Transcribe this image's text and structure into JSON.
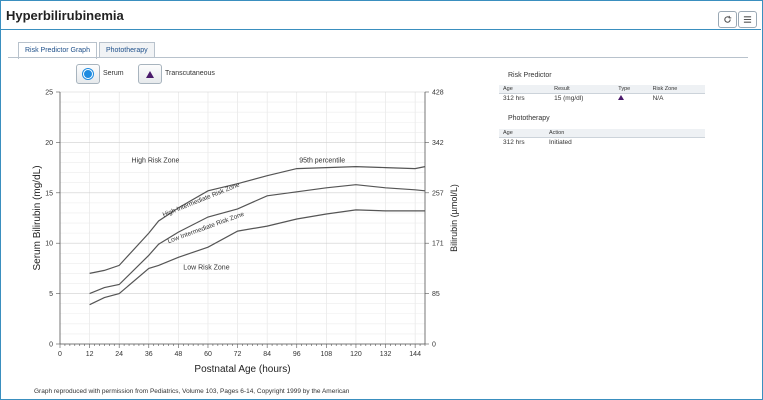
{
  "window": {
    "title": "Hyperbilirubinemia",
    "refresh_icon": "refresh-icon",
    "menu_icon": "menu-icon"
  },
  "tabs": [
    {
      "label": "Risk Predictor Graph",
      "active": true
    },
    {
      "label": "Phototherapy",
      "active": false
    }
  ],
  "legend": {
    "serum_label": "Serum",
    "transcutaneous_label": "Transcutaneous"
  },
  "chart_data": {
    "type": "line",
    "xlabel": "Postnatal Age (hours)",
    "ylabel": "Serum Bilirubin (mg/dL)",
    "y2label": "Bilirubin (µmol/L)",
    "xlim": [
      0,
      148
    ],
    "ylim": [
      0,
      25
    ],
    "x_ticks": [
      "0",
      "12",
      "24",
      "36",
      "48",
      "60",
      "72",
      "84",
      "96",
      "108",
      "120",
      "132",
      "144"
    ],
    "y_ticks": [
      "0",
      "5",
      "10",
      "15",
      "20",
      "25"
    ],
    "y2_ticks": [
      "0",
      "85",
      "171",
      "257",
      "342",
      "428"
    ],
    "zone_labels": {
      "high": "High Risk Zone",
      "p95": "95th percentile",
      "high_int": "High Intermediate Risk Zone",
      "low_int": "Low Intermediate Risk Zone",
      "low": "Low Risk Zone"
    },
    "series": [
      {
        "key": "p95",
        "x": [
          12,
          18,
          24,
          36,
          40,
          48,
          60,
          72,
          84,
          96,
          108,
          120,
          132,
          144,
          148
        ],
        "values": [
          7.0,
          7.3,
          7.8,
          11.0,
          12.2,
          13.5,
          15.2,
          15.9,
          16.7,
          17.4,
          17.5,
          17.6,
          17.5,
          17.4,
          17.6
        ]
      },
      {
        "key": "p75",
        "x": [
          12,
          18,
          24,
          36,
          40,
          48,
          60,
          72,
          84,
          96,
          108,
          120,
          132,
          144,
          148
        ],
        "values": [
          5.0,
          5.6,
          5.9,
          8.8,
          9.9,
          11.1,
          12.6,
          13.4,
          14.7,
          15.1,
          15.5,
          15.8,
          15.5,
          15.3,
          15.2
        ]
      },
      {
        "key": "p40",
        "x": [
          12,
          18,
          24,
          36,
          40,
          48,
          60,
          72,
          84,
          96,
          108,
          120,
          132,
          144,
          148
        ],
        "values": [
          3.9,
          4.6,
          5.0,
          7.5,
          7.8,
          8.6,
          9.6,
          11.2,
          11.7,
          12.4,
          12.9,
          13.3,
          13.2,
          13.2,
          13.2
        ]
      }
    ]
  },
  "risk_predictor": {
    "heading": "Risk Predictor",
    "headers": [
      "Age",
      "Result",
      "Type",
      "Risk Zone"
    ],
    "row": {
      "age": "312 hrs",
      "result": "15 (mg/dl)",
      "risk_zone": "N/A"
    }
  },
  "phototherapy": {
    "heading": "Phototherapy",
    "headers": [
      "Age",
      "Action"
    ],
    "row": {
      "age": "312 hrs",
      "action": "Initiated"
    }
  },
  "footnote": "Graph reproduced with permission from Pediatrics, Volume 103, Pages 6-14, Copyright 1999 by the American"
}
